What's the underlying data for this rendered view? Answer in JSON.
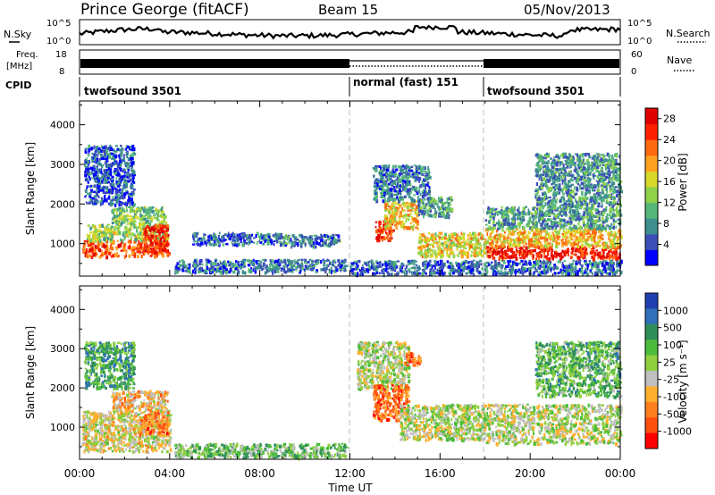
{
  "header": {
    "station": "Prince George (fitACF)",
    "beam": "Beam 15",
    "date": "05/Nov/2013"
  },
  "top_panels": {
    "nsky_label": "N.Sky",
    "nsky_ticks": [
      "10^5",
      "10^0"
    ],
    "nsearch_label": "N.Search",
    "nsearch_ticks": [
      "10^5",
      "10^0"
    ],
    "freq_label": "Freq.",
    "freq_unit": "[MHz]",
    "freq_ticks": [
      "18",
      "8"
    ],
    "nave_label": "Nave",
    "nave_ticks": [
      "60",
      "0"
    ],
    "cpid_label": "CPID",
    "cpid_segments": [
      {
        "label": "twofsound 3501",
        "start_h": 0,
        "end_h": 12
      },
      {
        "label": "normal (fast) 151",
        "start_h": 12,
        "end_h": 18
      },
      {
        "label": "twofsound 3501",
        "start_h": 18,
        "end_h": 24
      }
    ]
  },
  "chart_data": [
    {
      "type": "heatmap",
      "name": "power",
      "ylabel": "Slant Range [km]",
      "ylim": [
        180,
        4600
      ],
      "yticks": [
        1000,
        2000,
        3000,
        4000
      ],
      "xlim": [
        0,
        24
      ],
      "xticks": [
        "00:00",
        "04:00",
        "08:00",
        "12:00",
        "16:00",
        "20:00",
        "00:00"
      ],
      "colorbar": {
        "label": "Power [dB]",
        "ticks": [
          "4",
          "8",
          "12",
          "16",
          "20",
          "24",
          "28"
        ],
        "range": [
          0,
          30
        ],
        "colors": [
          "#0000ff",
          "#3c4fb8",
          "#3f8f8f",
          "#55b87a",
          "#8fd24a",
          "#d8d82a",
          "#ffa020",
          "#ff6a10",
          "#ff2000",
          "#e00000"
        ]
      },
      "regions": [
        {
          "t0": 0.1,
          "t1": 4.0,
          "r0": 700,
          "r1": 1100,
          "level": 0.78
        },
        {
          "t0": 0.3,
          "t1": 3.9,
          "r0": 1100,
          "r1": 1500,
          "level": 0.45
        },
        {
          "t0": 1.4,
          "t1": 3.8,
          "r0": 1500,
          "r1": 1950,
          "level": 0.4
        },
        {
          "t0": 2.8,
          "t1": 3.9,
          "r0": 800,
          "r1": 1500,
          "level": 0.88
        },
        {
          "t0": 0.2,
          "t1": 2.4,
          "r0": 2000,
          "r1": 3500,
          "level": 0.15
        },
        {
          "t0": 4.2,
          "t1": 11.8,
          "r0": 300,
          "r1": 620,
          "level": 0.2
        },
        {
          "t0": 5.0,
          "t1": 9.0,
          "r0": 1000,
          "r1": 1300,
          "level": 0.2
        },
        {
          "t0": 9.0,
          "t1": 11.5,
          "r0": 950,
          "r1": 1250,
          "level": 0.25
        },
        {
          "t0": 12.0,
          "t1": 24.0,
          "r0": 250,
          "r1": 600,
          "level": 0.2
        },
        {
          "t0": 13.1,
          "t1": 13.9,
          "r0": 1100,
          "r1": 1650,
          "level": 0.9
        },
        {
          "t0": 13.5,
          "t1": 15.0,
          "r0": 1400,
          "r1": 2100,
          "level": 0.6
        },
        {
          "t0": 13.0,
          "t1": 15.5,
          "r0": 2100,
          "r1": 3000,
          "level": 0.22
        },
        {
          "t0": 15.0,
          "t1": 16.5,
          "r0": 1700,
          "r1": 2200,
          "level": 0.3
        },
        {
          "t0": 15.0,
          "t1": 18.0,
          "r0": 700,
          "r1": 1300,
          "level": 0.55
        },
        {
          "t0": 18.0,
          "t1": 24.0,
          "r0": 650,
          "r1": 950,
          "level": 0.9
        },
        {
          "t0": 18.0,
          "t1": 24.0,
          "r0": 950,
          "r1": 1400,
          "level": 0.62
        },
        {
          "t0": 18.0,
          "t1": 24.0,
          "r0": 1400,
          "r1": 1950,
          "level": 0.3
        },
        {
          "t0": 20.2,
          "t1": 24.0,
          "r0": 1950,
          "r1": 3300,
          "level": 0.28
        }
      ]
    },
    {
      "type": "heatmap",
      "name": "velocity",
      "ylabel": "Slant Range [km]",
      "ylim": [
        180,
        4600
      ],
      "yticks": [
        1000,
        2000,
        3000,
        4000
      ],
      "xlabel": "Time UT",
      "xlim": [
        0,
        24
      ],
      "xticks": [
        "00:00",
        "04:00",
        "08:00",
        "12:00",
        "16:00",
        "20:00",
        "00:00"
      ],
      "colorbar": {
        "label": "Velocity [m s⁻¹]",
        "ticks": [
          "1000",
          "500",
          "100",
          "25",
          "-25",
          "-100",
          "-500",
          "-1000"
        ],
        "colors": [
          "#2040b0",
          "#3070b8",
          "#2f8f5a",
          "#4cbc3c",
          "#90d040",
          "#bfbfbf",
          "#ffb030",
          "#ff8020",
          "#ff5010",
          "#ff0000"
        ]
      },
      "regions": [
        {
          "t0": 0.1,
          "t1": 4.0,
          "r0": 400,
          "r1": 1450,
          "level": 0.55
        },
        {
          "t0": 1.4,
          "t1": 3.9,
          "r0": 1450,
          "r1": 1950,
          "level": 0.65
        },
        {
          "t0": 2.6,
          "t1": 3.9,
          "r0": 800,
          "r1": 1400,
          "level": 0.75
        },
        {
          "t0": 0.2,
          "t1": 2.4,
          "r0": 2000,
          "r1": 3200,
          "level": 0.3
        },
        {
          "t0": 4.2,
          "t1": 11.8,
          "r0": 250,
          "r1": 600,
          "level": 0.4
        },
        {
          "t0": 12.3,
          "t1": 14.6,
          "r0": 2000,
          "r1": 3200,
          "level": 0.5
        },
        {
          "t0": 13.0,
          "t1": 14.6,
          "r0": 1200,
          "r1": 2100,
          "level": 0.8
        },
        {
          "t0": 14.4,
          "t1": 15.1,
          "r0": 2600,
          "r1": 2950,
          "level": 0.8
        },
        {
          "t0": 14.2,
          "t1": 18.0,
          "r0": 700,
          "r1": 1600,
          "level": 0.5
        },
        {
          "t0": 18.0,
          "t1": 24.0,
          "r0": 600,
          "r1": 1600,
          "level": 0.5
        },
        {
          "t0": 20.2,
          "t1": 24.0,
          "r0": 1800,
          "r1": 3200,
          "level": 0.35
        }
      ]
    }
  ]
}
